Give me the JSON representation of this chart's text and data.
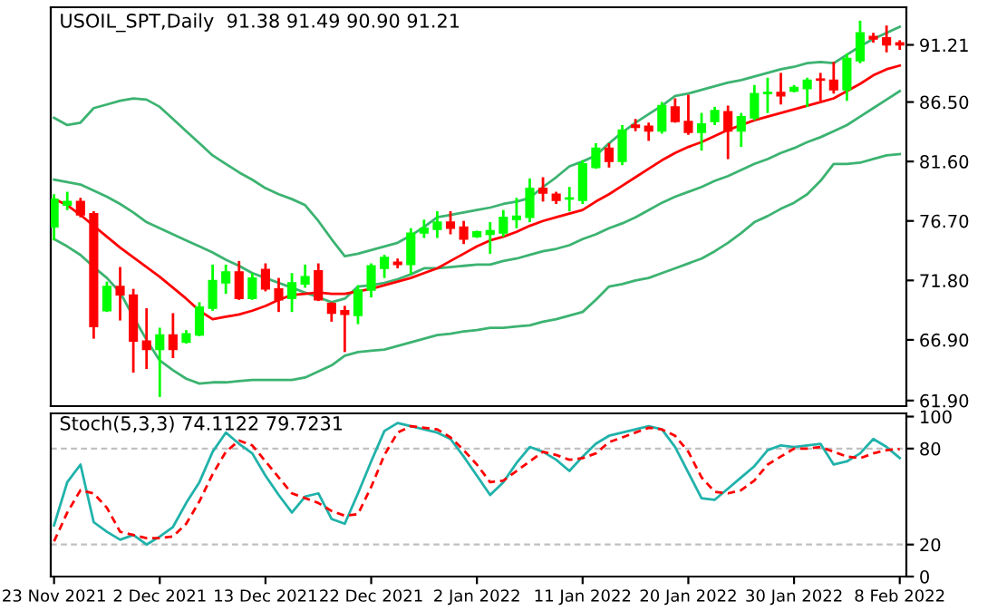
{
  "chart_data": [
    {
      "type": "candlestick",
      "title": "USOIL_SPT,Daily  91.38 91.49 90.90 91.21",
      "categories": [
        null,
        null,
        null,
        null,
        null,
        null,
        null,
        null,
        null,
        null,
        null,
        null,
        null,
        null,
        null,
        null,
        null,
        null,
        null,
        null,
        null,
        null,
        null,
        null,
        null,
        null,
        null,
        null,
        null,
        null,
        null,
        null,
        null,
        null,
        null,
        null,
        null,
        null,
        null,
        null,
        null,
        null,
        null,
        null,
        null,
        null,
        null,
        null,
        null,
        null,
        null,
        null,
        null,
        null,
        null,
        null,
        null,
        null,
        null,
        null,
        null,
        null,
        null,
        null,
        null
      ],
      "ohlc": [
        [
          76.2,
          78.8,
          75.2,
          78.5
        ],
        [
          78.0,
          79.0,
          77.7,
          78.3
        ],
        [
          78.3,
          78.5,
          77.1,
          77.2
        ],
        [
          77.3,
          77.4,
          67.1,
          68.0
        ],
        [
          69.3,
          71.6,
          69.3,
          71.3
        ],
        [
          71.3,
          72.8,
          68.6,
          70.6
        ],
        [
          70.6,
          71.0,
          64.3,
          66.8
        ],
        [
          66.8,
          69.4,
          64.6,
          66.1
        ],
        [
          66.1,
          67.8,
          62.3,
          67.3
        ],
        [
          67.3,
          69.0,
          65.5,
          66.1
        ],
        [
          66.7,
          67.6,
          66.7,
          67.4
        ],
        [
          67.3,
          69.9,
          67.3,
          69.6
        ],
        [
          69.5,
          73.0,
          69.4,
          71.8
        ],
        [
          71.6,
          73.0,
          70.8,
          72.5
        ],
        [
          72.5,
          73.3,
          70.3,
          70.3
        ],
        [
          70.3,
          72.3,
          70.3,
          72.0
        ],
        [
          72.7,
          73.1,
          71.0,
          71.1
        ],
        [
          71.1,
          71.9,
          69.3,
          70.2
        ],
        [
          70.3,
          72.3,
          69.3,
          71.6
        ],
        [
          71.5,
          73.0,
          71.3,
          72.1
        ],
        [
          72.6,
          73.1,
          70.2,
          70.2
        ],
        [
          69.9,
          69.9,
          68.5,
          69.1
        ],
        [
          69.3,
          69.6,
          66.0,
          69.0
        ],
        [
          68.9,
          71.3,
          68.3,
          71.0
        ],
        [
          71.0,
          73.1,
          70.5,
          73.0
        ],
        [
          72.8,
          73.8,
          72.1,
          73.7
        ],
        [
          73.3,
          73.5,
          72.9,
          73.1
        ],
        [
          73.1,
          76.0,
          72.4,
          75.7
        ],
        [
          75.7,
          76.7,
          75.4,
          76.1
        ],
        [
          76.0,
          77.4,
          75.4,
          76.6
        ],
        [
          76.6,
          77.4,
          75.7,
          76.1
        ],
        [
          76.2,
          76.6,
          74.9,
          75.2
        ],
        [
          75.4,
          75.8,
          75.4,
          75.8
        ],
        [
          75.6,
          76.5,
          74.1,
          75.9
        ],
        [
          75.7,
          77.5,
          75.5,
          77.0
        ],
        [
          76.8,
          78.5,
          76.2,
          77.1
        ],
        [
          77.0,
          80.1,
          76.7,
          79.4
        ],
        [
          79.4,
          80.2,
          78.4,
          79.0
        ],
        [
          78.9,
          79.0,
          78.2,
          78.4
        ],
        [
          78.5,
          79.4,
          77.6,
          78.6
        ],
        [
          78.4,
          81.6,
          78.2,
          81.4
        ],
        [
          81.1,
          83.0,
          81.1,
          82.7
        ],
        [
          82.7,
          83.0,
          81.2,
          81.6
        ],
        [
          81.6,
          84.5,
          81.4,
          84.2
        ],
        [
          84.6,
          85.0,
          84.2,
          84.4
        ],
        [
          84.5,
          84.7,
          83.4,
          84.1
        ],
        [
          84.1,
          86.4,
          84.0,
          86.2
        ],
        [
          86.1,
          86.7,
          84.9,
          84.9
        ],
        [
          84.9,
          87.0,
          83.9,
          84.0
        ],
        [
          84.0,
          85.5,
          82.6,
          84.7
        ],
        [
          84.9,
          86.0,
          84.7,
          85.8
        ],
        [
          85.7,
          86.1,
          81.9,
          84.1
        ],
        [
          84.1,
          85.5,
          82.9,
          85.3
        ],
        [
          85.2,
          87.8,
          85.1,
          87.2
        ],
        [
          87.2,
          88.4,
          85.7,
          87.3
        ],
        [
          87.3,
          88.8,
          86.4,
          87.0
        ],
        [
          87.4,
          87.8,
          87.4,
          87.7
        ],
        [
          87.6,
          88.4,
          86.2,
          88.3
        ],
        [
          88.4,
          88.8,
          86.7,
          88.3
        ],
        [
          88.3,
          89.7,
          87.3,
          87.5
        ],
        [
          87.5,
          90.4,
          86.7,
          90.1
        ],
        [
          89.9,
          93.1,
          89.8,
          92.2
        ],
        [
          91.9,
          92.1,
          91.5,
          91.7
        ],
        [
          91.8,
          92.7,
          90.7,
          91.2
        ],
        [
          91.38,
          91.49,
          90.9,
          91.21
        ]
      ],
      "colors": [
        "#00ff00",
        "#00ff00",
        "#ff0000",
        "#ff0000",
        "#00ff00",
        "#ff0000",
        "#ff0000",
        "#ff0000",
        "#00ff00",
        "#ff0000",
        "#00ff00",
        "#00ff00",
        "#00ff00",
        "#00ff00",
        "#ff0000",
        "#00ff00",
        "#ff0000",
        "#ff0000",
        "#00ff00",
        "#00ff00",
        "#ff0000",
        "#ff0000",
        "#ff0000",
        "#00ff00",
        "#00ff00",
        "#00ff00",
        "#ff0000",
        "#00ff00",
        "#00ff00",
        "#00ff00",
        "#ff0000",
        "#ff0000",
        "#00ff00",
        "#00ff00",
        "#00ff00",
        "#00ff00",
        "#00ff00",
        "#ff0000",
        "#ff0000",
        "#00ff00",
        "#00ff00",
        "#00ff00",
        "#ff0000",
        "#00ff00",
        "#ff0000",
        "#ff0000",
        "#00ff00",
        "#ff0000",
        "#ff0000",
        "#00ff00",
        "#00ff00",
        "#ff0000",
        "#00ff00",
        "#00ff00",
        "#00ff00",
        "#ff0000",
        "#00ff00",
        "#00ff00",
        "#ff0000",
        "#ff0000",
        "#00ff00",
        "#00ff00",
        "#ff0000",
        "#ff0000",
        "#ff0000"
      ],
      "series": [
        {
          "type": "line",
          "color": "#3cb371",
          "values": [
            85.2,
            84.6,
            84.8,
            86.0,
            86.3,
            86.6,
            86.8,
            86.7,
            86.1,
            85.1,
            84.1,
            83.1,
            82.1,
            81.4,
            80.7,
            80.1,
            79.4,
            78.9,
            78.5,
            78.0,
            76.7,
            75.2,
            73.8,
            74.0,
            74.3,
            74.6,
            74.9,
            75.5,
            76.2,
            77.0,
            77.2,
            77.4,
            77.6,
            77.8,
            78.1,
            78.3,
            78.6,
            79.5,
            80.3,
            81.2,
            81.6,
            82.1,
            83.1,
            84.0,
            84.8,
            85.5,
            86.2,
            87.0,
            87.2,
            87.5,
            87.8,
            88.1,
            88.3,
            88.6,
            88.9,
            89.2,
            89.4,
            89.7,
            89.8,
            89.7,
            90.4,
            91.1,
            91.7,
            92.2,
            92.7
          ]
        },
        {
          "type": "line",
          "color": "#3cb371",
          "values": [
            80.1,
            79.9,
            79.7,
            79.2,
            78.7,
            78.1,
            77.4,
            76.6,
            76.1,
            75.6,
            75.1,
            74.6,
            74.1,
            73.5,
            73.0,
            72.4,
            72.0,
            71.6,
            71.2,
            70.8,
            70.4,
            70.0,
            70.3,
            71.3,
            71.4,
            71.6,
            71.9,
            72.3,
            72.8,
            72.8,
            72.9,
            73.0,
            73.1,
            73.1,
            73.4,
            73.6,
            73.9,
            74.2,
            74.4,
            74.7,
            75.2,
            75.6,
            76.1,
            76.5,
            77.0,
            77.6,
            78.2,
            78.7,
            79.1,
            79.5,
            80.0,
            80.4,
            80.9,
            81.4,
            81.8,
            82.3,
            82.7,
            83.2,
            83.6,
            84.1,
            84.6,
            85.3,
            86.0,
            86.7,
            87.4
          ]
        },
        {
          "type": "line",
          "color": "#3cb371",
          "values": [
            75.2,
            74.6,
            73.9,
            72.9,
            72.0,
            70.8,
            68.8,
            66.9,
            65.2,
            64.4,
            63.7,
            63.3,
            63.4,
            63.4,
            63.5,
            63.6,
            63.6,
            63.6,
            63.6,
            63.8,
            64.3,
            64.8,
            65.6,
            65.9,
            66.0,
            66.1,
            66.4,
            66.7,
            67.0,
            67.3,
            67.4,
            67.6,
            67.7,
            67.9,
            67.9,
            68.0,
            68.1,
            68.4,
            68.6,
            68.9,
            69.2,
            70.2,
            71.3,
            71.5,
            71.8,
            72.0,
            72.4,
            72.8,
            73.2,
            73.6,
            74.2,
            74.9,
            75.7,
            76.6,
            77.1,
            77.7,
            78.2,
            78.9,
            80.0,
            81.4,
            81.4,
            81.5,
            81.8,
            82.1,
            82.2
          ]
        },
        {
          "type": "line",
          "color": "#ff0000",
          "values": [
            78.5,
            78.0,
            77.2,
            76.3,
            75.4,
            74.5,
            73.7,
            72.9,
            72.1,
            71.2,
            70.3,
            69.3,
            68.6,
            68.8,
            69.0,
            69.3,
            69.7,
            70.2,
            70.6,
            70.7,
            70.8,
            70.7,
            70.7,
            70.9,
            71.1,
            71.4,
            71.7,
            72.0,
            72.4,
            72.8,
            73.4,
            74.0,
            74.6,
            75.1,
            75.4,
            75.8,
            76.3,
            76.7,
            77.0,
            77.3,
            77.6,
            78.3,
            78.9,
            79.6,
            80.3,
            81.0,
            81.7,
            82.3,
            82.8,
            83.2,
            83.7,
            84.2,
            84.6,
            85.0,
            85.3,
            85.6,
            85.9,
            86.2,
            86.5,
            86.8,
            87.4,
            88.0,
            88.7,
            89.2,
            89.5
          ]
        }
      ],
      "ylim": [
        61.44,
        94.31
      ],
      "yticks": [
        {
          "value": 61.9,
          "label": "61.90"
        },
        {
          "value": 66.9,
          "label": "66.90"
        },
        {
          "value": 71.8,
          "label": "71.80"
        },
        {
          "value": 76.7,
          "label": "76.70"
        },
        {
          "value": 81.6,
          "label": "81.60"
        },
        {
          "value": 86.5,
          "label": "86.50"
        },
        91.21
      ],
      "tick_labels": "y"
    },
    {
      "type": "line",
      "title": "Stoch(5,3,3) 74.1122 79.7231",
      "categories": [
        "23 Nov 2021",
        null,
        null,
        null,
        null,
        null,
        null,
        null,
        "2 Dec 2021",
        null,
        null,
        null,
        null,
        null,
        null,
        null,
        "13 Dec 2021",
        null,
        null,
        null,
        null,
        null,
        null,
        null,
        "22 Dec 2021",
        null,
        null,
        null,
        null,
        null,
        null,
        null,
        "2 Jan 2022",
        null,
        null,
        null,
        null,
        null,
        null,
        null,
        "11 Jan 2022",
        null,
        null,
        null,
        null,
        null,
        null,
        null,
        "20 Jan 2022",
        null,
        null,
        null,
        null,
        null,
        null,
        null,
        "30 Jan 2022",
        null,
        null,
        null,
        null,
        null,
        null,
        null,
        "8 Feb 2022"
      ],
      "series": [
        {
          "color": "#20b2aa",
          "line_style": "solid",
          "values": [
            32,
            59,
            70,
            34,
            28,
            23,
            26,
            20,
            25,
            31,
            46,
            59,
            78,
            90,
            83,
            77,
            63,
            51,
            40,
            50,
            52,
            36,
            33,
            52,
            72,
            91,
            96,
            94,
            92,
            90,
            86,
            75,
            63,
            51,
            59,
            71,
            81,
            78,
            73,
            66,
            75,
            83,
            88,
            90,
            92,
            94,
            92,
            81,
            65,
            49,
            48,
            55,
            62,
            69,
            79,
            82,
            81,
            82,
            83,
            70,
            72,
            77,
            86,
            81,
            74.11
          ]
        },
        {
          "color": "#ff0000",
          "line_style": "dashed",
          "values": [
            22,
            40,
            54,
            52,
            43,
            28,
            26,
            24,
            24,
            25,
            33,
            47,
            64,
            78,
            85,
            82,
            72,
            62,
            52,
            49,
            46,
            41,
            38,
            39,
            56,
            76,
            90,
            94,
            93,
            92,
            87,
            79,
            70,
            59,
            60,
            66,
            72,
            78,
            76,
            73,
            74,
            77,
            84,
            87,
            90,
            93,
            92,
            88,
            78,
            62,
            53,
            52,
            54,
            60,
            70,
            75,
            80,
            80,
            81,
            78,
            75,
            74,
            77,
            79,
            79.72
          ]
        }
      ],
      "ref_lines": [
        {
          "axis": "y",
          "value": 80,
          "color": "#c0c0c0",
          "line_style": "dashed"
        },
        {
          "axis": "y",
          "value": 20,
          "color": "#c0c0c0",
          "line_style": "dashed"
        }
      ],
      "ylim": [
        0,
        102
      ],
      "yticks": [
        0,
        20,
        80,
        100
      ]
    }
  ]
}
